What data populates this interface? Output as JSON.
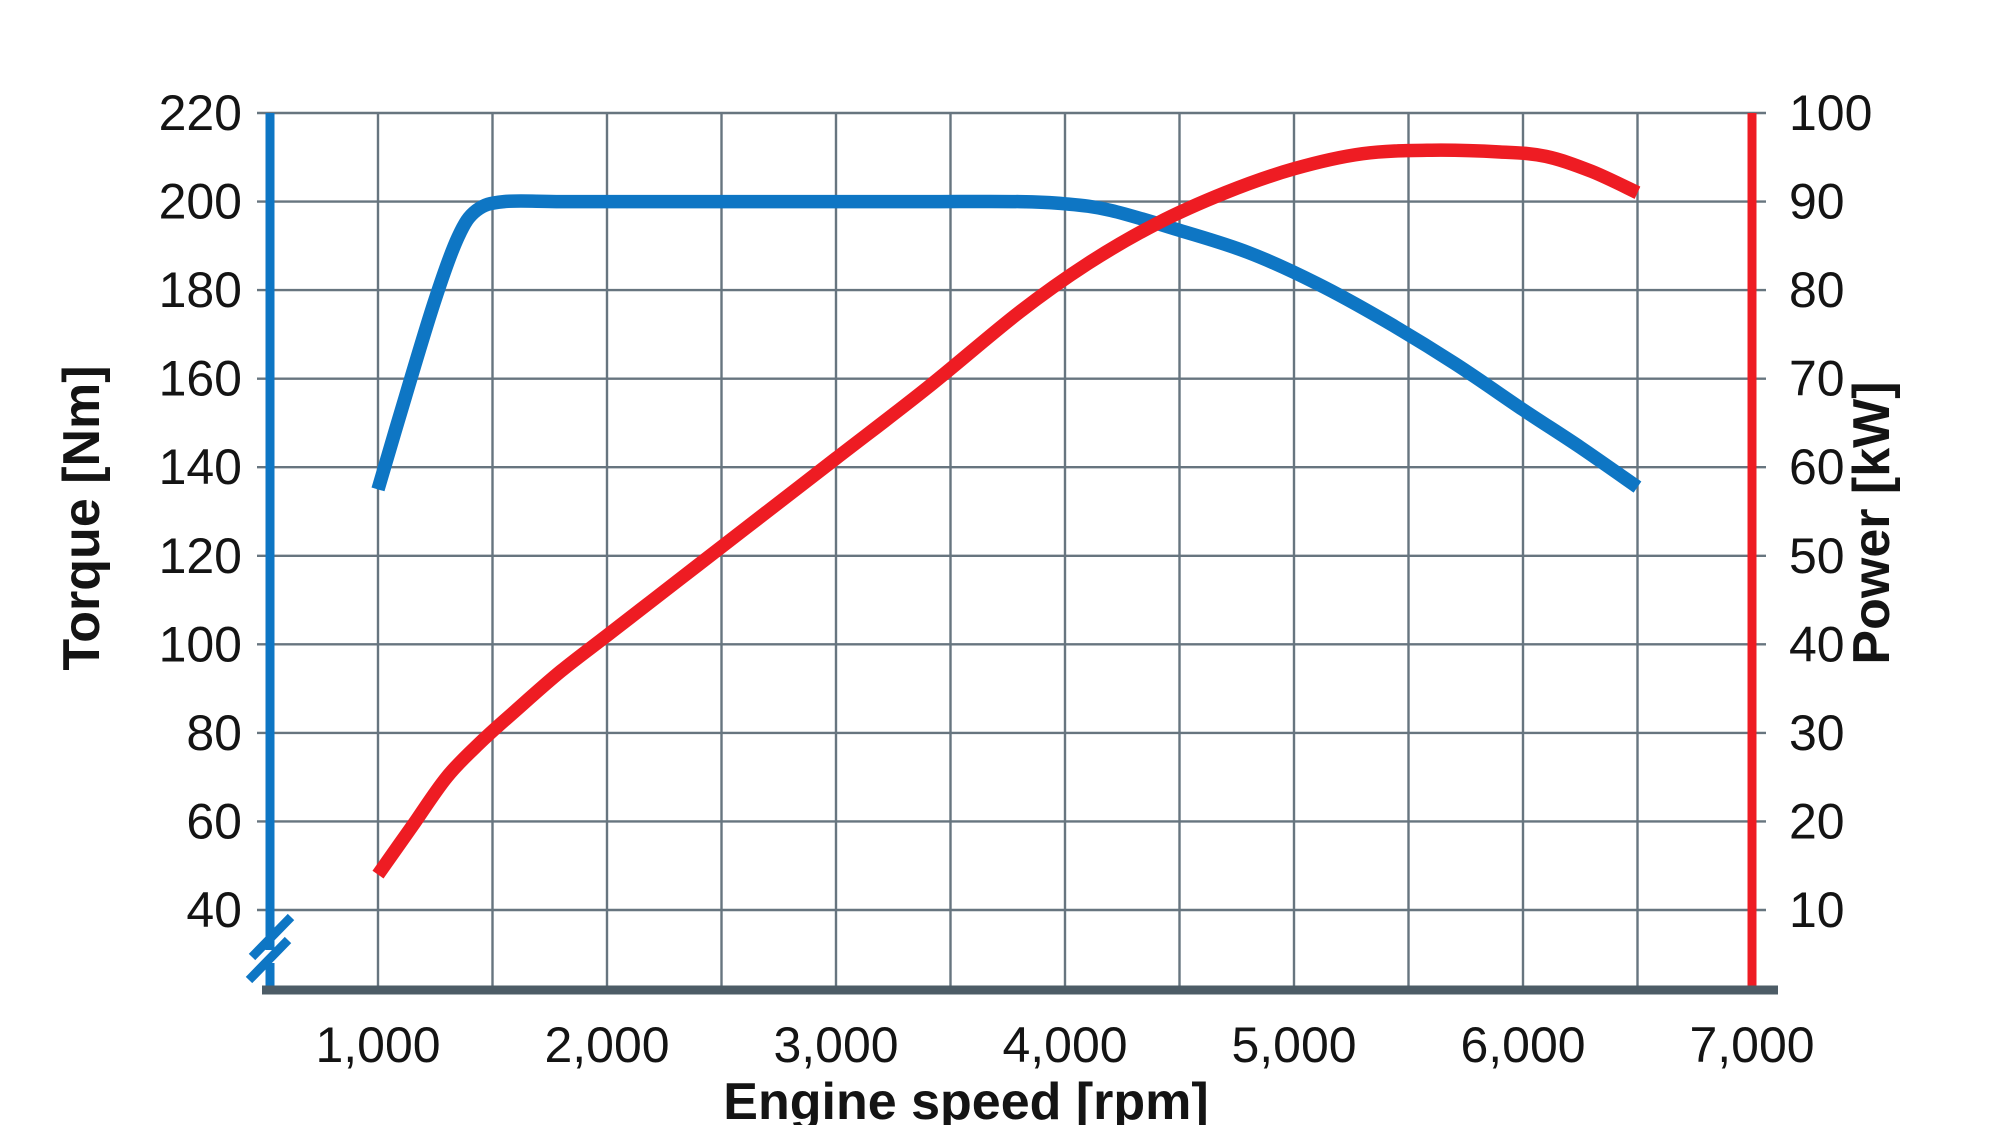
{
  "chart_data": {
    "type": "line",
    "title": "",
    "background": "#ffffff",
    "grid": true,
    "grid_color": "#67757f",
    "baseline_color": "#4d5c66",
    "text_color": "#141414",
    "x_axis": {
      "label": "Engine speed [rpm]",
      "min": 500,
      "max": 7000,
      "minor_step": 500,
      "ticks": [
        {
          "value": 1000,
          "label": "1,000"
        },
        {
          "value": 2000,
          "label": "2,000"
        },
        {
          "value": 3000,
          "label": "3,000"
        },
        {
          "value": 4000,
          "label": "4,000"
        },
        {
          "value": 5000,
          "label": "5,000"
        },
        {
          "value": 6000,
          "label": "6,000"
        },
        {
          "value": 7000,
          "label": "7,000"
        }
      ]
    },
    "left_axis": {
      "label": "Torque [Nm]",
      "min": 40,
      "max": 220,
      "step": 20,
      "color": "#0e76c4",
      "has_break": true,
      "tick_labels": [
        "220",
        "200",
        "180",
        "160",
        "140",
        "120",
        "100",
        "80",
        "60",
        "40"
      ]
    },
    "right_axis": {
      "label": "Power [kW]",
      "min": 10,
      "max": 100,
      "step": 10,
      "color": "#ee1c23",
      "has_break": false,
      "tick_labels": [
        "100",
        "90",
        "80",
        "70",
        "60",
        "50",
        "40",
        "30",
        "20",
        "10"
      ]
    },
    "series": [
      {
        "name": "torque-curve",
        "unit": "Nm",
        "axis": "left",
        "color": "#0e76c4",
        "peak": {
          "value": 200,
          "from_rpm": 1500,
          "to_rpm": 4000
        },
        "points": [
          [
            1000,
            135
          ],
          [
            1120,
            156
          ],
          [
            1250,
            178
          ],
          [
            1350,
            192
          ],
          [
            1430,
            198
          ],
          [
            1550,
            200
          ],
          [
            1800,
            200
          ],
          [
            2200,
            200
          ],
          [
            2600,
            200
          ],
          [
            3000,
            200
          ],
          [
            3400,
            200
          ],
          [
            3800,
            200
          ],
          [
            4000,
            199.5
          ],
          [
            4200,
            198
          ],
          [
            4500,
            193.5
          ],
          [
            4800,
            188.5
          ],
          [
            5100,
            181.5
          ],
          [
            5400,
            173
          ],
          [
            5700,
            163.5
          ],
          [
            6000,
            153
          ],
          [
            6250,
            144.5
          ],
          [
            6500,
            135.5
          ]
        ]
      },
      {
        "name": "power-curve",
        "unit": "kW",
        "axis": "right",
        "color": "#ee1c23",
        "peak": {
          "value": 95.8,
          "from_rpm": 5300,
          "to_rpm": 5900
        },
        "points": [
          [
            1000,
            14
          ],
          [
            1150,
            19.5
          ],
          [
            1300,
            25
          ],
          [
            1450,
            29
          ],
          [
            1600,
            32.5
          ],
          [
            1800,
            37
          ],
          [
            2000,
            41
          ],
          [
            2300,
            47
          ],
          [
            2600,
            53
          ],
          [
            3000,
            61
          ],
          [
            3400,
            69
          ],
          [
            3800,
            77.5
          ],
          [
            4100,
            83
          ],
          [
            4400,
            87.5
          ],
          [
            4700,
            91
          ],
          [
            5000,
            93.7
          ],
          [
            5300,
            95.4
          ],
          [
            5600,
            95.8
          ],
          [
            5900,
            95.6
          ],
          [
            6100,
            95.1
          ],
          [
            6300,
            93.4
          ],
          [
            6500,
            91
          ]
        ]
      }
    ]
  }
}
